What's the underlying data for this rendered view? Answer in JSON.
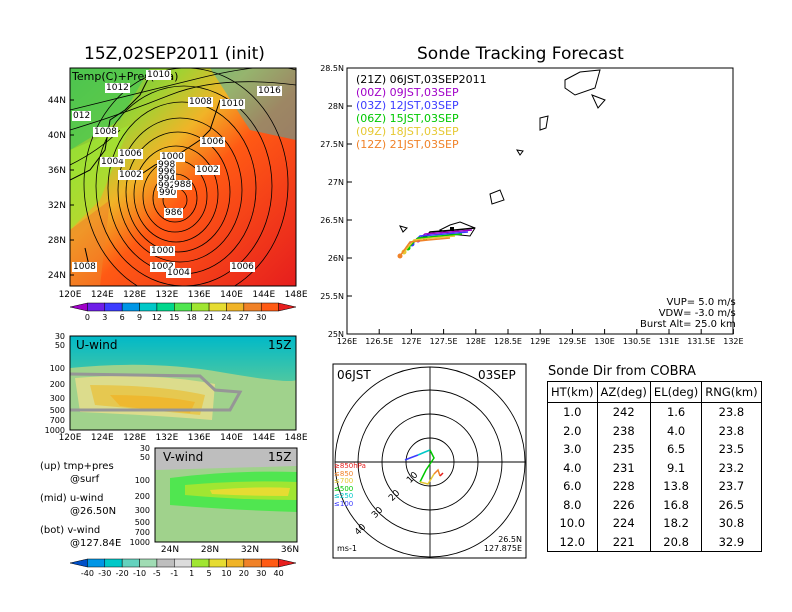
{
  "map": {
    "title": "15Z,02SEP2011 (init)",
    "label": "Temp(C)+Pres(hPa)",
    "lat_labels": [
      "44N",
      "40N",
      "36N",
      "32N",
      "28N",
      "24N"
    ],
    "lon_labels": [
      "120E",
      "124E",
      "128E",
      "132E",
      "136E",
      "140E",
      "144E",
      "148E"
    ],
    "colorbar": [
      "0",
      "3",
      "6",
      "9",
      "12",
      "15",
      "18",
      "21",
      "24",
      "27",
      "30"
    ],
    "colorbar_colors": [
      "#a000c8",
      "#6e1ee8",
      "#3c3cff",
      "#0096e6",
      "#00c8c8",
      "#00d78c",
      "#50e650",
      "#a0e632",
      "#e6dc32",
      "#f0b428",
      "#f08228",
      "#ff5a14",
      "#e61e1e"
    ],
    "isobars": [
      "1010",
      "1012",
      "1016",
      "1008",
      "1010",
      "012",
      "1008",
      "1006",
      "1004",
      "1006",
      "1002",
      "1000",
      "998",
      "996",
      "994",
      "992",
      "990",
      "988",
      "986",
      "1002",
      "1000",
      "1002",
      "1004",
      "1006",
      "1008"
    ]
  },
  "uwind": {
    "label": "U-wind",
    "time": "15Z",
    "y_labels": [
      "30",
      "50",
      "100",
      "200",
      "300",
      "500",
      "700",
      "1000"
    ],
    "x_labels": [
      "120E",
      "124E",
      "128E",
      "132E",
      "136E",
      "140E",
      "144E",
      "148E"
    ]
  },
  "vwind": {
    "label": "V-wind",
    "time": "15Z",
    "y_labels": [
      "30",
      "50",
      "100",
      "200",
      "300",
      "500",
      "700",
      "1000"
    ],
    "x_labels": [
      "24N",
      "28N",
      "32N",
      "36N"
    ],
    "colorbar": [
      "-40",
      "-30",
      "-20",
      "-10",
      "-5",
      "-1",
      "1",
      "5",
      "10",
      "20",
      "30",
      "40"
    ],
    "colorbar_colors": [
      "#0050c8",
      "#0096e6",
      "#00c8c8",
      "#64d2be",
      "#a0dcb4",
      "#bebebe",
      "#dcdcdc",
      "#a0e632",
      "#e6dc32",
      "#f0b428",
      "#f08228",
      "#ff5a14",
      "#e61e1e"
    ]
  },
  "notes": {
    "up1": "(up) tmp+pres",
    "up2": "@surf",
    "mid1": "(mid) u-wind",
    "mid2": "@26.50N",
    "bot1": "(bot) v-wind",
    "bot2": "@127.84E"
  },
  "track": {
    "title": "Sonde Tracking Forecast",
    "entries": [
      {
        "text": "(21Z)  06JST,03SEP2011",
        "color": "#000000"
      },
      {
        "text": "(00Z)  09JST,03SEP",
        "color": "#a000c8"
      },
      {
        "text": "(03Z)  12JST,03SEP",
        "color": "#3c3cff"
      },
      {
        "text": "(06Z)  15JST,03SEP",
        "color": "#00c800"
      },
      {
        "text": "(09Z)  18JST,03SEP",
        "color": "#e6c832"
      },
      {
        "text": "(12Z)  21JST,03SEP",
        "color": "#f08228"
      }
    ],
    "lat_labels": [
      "28.5N",
      "28N",
      "27.5N",
      "27N",
      "26.5N",
      "26N",
      "25.5N",
      "25N"
    ],
    "lon_labels": [
      "126E",
      "126.5E",
      "127E",
      "127.5E",
      "128E",
      "128.5E",
      "129E",
      "129.5E",
      "130E",
      "130.5E",
      "131E",
      "131.5E",
      "132E"
    ],
    "vup": "VUP= 5.0 m/s",
    "vdw": "VDW= -3.0 m/s",
    "burst": "Burst Alt= 25.0 km"
  },
  "hodo": {
    "jst": "06JST",
    "date": "03SEP",
    "legend": [
      {
        "text": "≥850hPa",
        "color": "#e61e1e"
      },
      {
        "text": "≤850",
        "color": "#f08228"
      },
      {
        "text": "≤700",
        "color": "#e6c832"
      },
      {
        "text": "≤500",
        "color": "#00c800"
      },
      {
        "text": "≤250",
        "color": "#00c8c8"
      },
      {
        "text": "≤100",
        "color": "#3c3cff"
      }
    ],
    "ring_labels": [
      "10",
      "20",
      "30",
      "40"
    ],
    "unit": "ms-1",
    "lat": "26.5N",
    "lon": "127.875E"
  },
  "sonde_table": {
    "title": "Sonde Dir from COBRA",
    "headers": [
      "HT(km)",
      "AZ(deg)",
      "EL(deg)",
      "RNG(km)"
    ],
    "rows": [
      [
        "1.0",
        "242",
        "1.6",
        "23.8"
      ],
      [
        "2.0",
        "238",
        "4.0",
        "23.8"
      ],
      [
        "3.0",
        "235",
        "6.5",
        "23.5"
      ],
      [
        "4.0",
        "231",
        "9.1",
        "23.2"
      ],
      [
        "6.0",
        "228",
        "13.8",
        "23.7"
      ],
      [
        "8.0",
        "226",
        "16.8",
        "26.5"
      ],
      [
        "10.0",
        "224",
        "18.2",
        "30.8"
      ],
      [
        "12.0",
        "221",
        "20.8",
        "32.9"
      ]
    ]
  }
}
